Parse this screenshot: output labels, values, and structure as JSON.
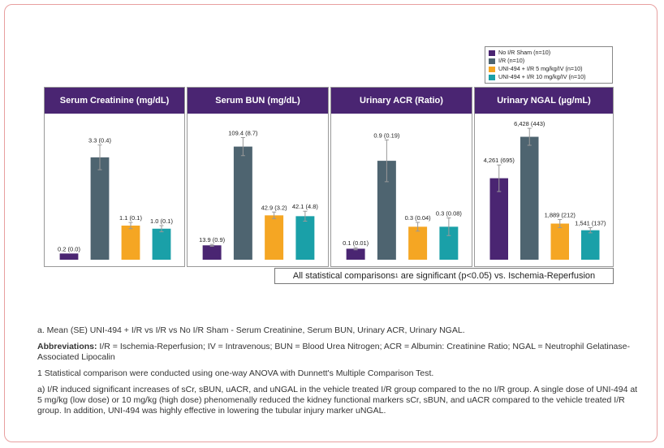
{
  "legend": [
    {
      "label": "No I/R Sham (n=10)",
      "color": "#4a2572"
    },
    {
      "label": "I/R (n=10)",
      "color": "#4e6470"
    },
    {
      "label": "UNI-494 + I/R 5 mg/kg/IV (n=10)",
      "color": "#f5a623"
    },
    {
      "label": "UNI-494 + I/R 10 mg/kg/IV (n=10)",
      "color": "#1aa0a8"
    }
  ],
  "chart_data": [
    {
      "type": "bar",
      "title": "Serum Creatinine (mg/dL)",
      "categories": [
        "No I/R Sham (n=10)",
        "I/R (n=10)",
        "UNI-494 + I/R 5 mg/kg/IV (n=10)",
        "UNI-494 + I/R 10 mg/kg/IV (n=10)"
      ],
      "values": [
        0.2,
        3.3,
        1.1,
        1.0
      ],
      "errors": [
        0.0,
        0.4,
        0.1,
        0.1
      ],
      "labels": [
        "0.2 (0.0)",
        "3.3 (0.4)",
        "1.1 (0.1)",
        "1.0 (0.1)"
      ],
      "ylim": [
        0,
        4.5
      ]
    },
    {
      "type": "bar",
      "title": "Serum BUN (mg/dL)",
      "categories": [
        "No I/R Sham (n=10)",
        "I/R (n=10)",
        "UNI-494 + I/R 5 mg/kg/IV (n=10)",
        "UNI-494 + I/R 10 mg/kg/IV (n=10)"
      ],
      "values": [
        13.9,
        109.4,
        42.9,
        42.1
      ],
      "errors": [
        0.9,
        8.7,
        3.2,
        4.8
      ],
      "labels": [
        "13.9 (0.9)",
        "109.4 (8.7)",
        "42.9 (3.2)",
        "42.1 (4.8)"
      ],
      "ylim": [
        0,
        135
      ]
    },
    {
      "type": "bar",
      "title": "Urinary ACR (Ratio)",
      "categories": [
        "No I/R Sham (n=10)",
        "I/R (n=10)",
        "UNI-494 + I/R 5 mg/kg/IV (n=10)",
        "UNI-494 + I/R 10 mg/kg/IV (n=10)"
      ],
      "values": [
        0.1,
        0.9,
        0.3,
        0.3
      ],
      "errors": [
        0.01,
        0.19,
        0.04,
        0.08
      ],
      "labels": [
        "0.1 (0.01)",
        "0.9 (0.19)",
        "0.3 (0.04)",
        "0.3 (0.08)"
      ],
      "ylim": [
        0,
        1.27
      ]
    },
    {
      "type": "bar",
      "title": "Urinary NGAL (µg/mL)",
      "categories": [
        "No I/R Sham (n=10)",
        "I/R (n=10)",
        "UNI-494 + I/R 5 mg/kg/IV (n=10)",
        "UNI-494 + I/R 10 mg/kg/IV (n=10)"
      ],
      "values": [
        4261,
        6428,
        1889,
        1541
      ],
      "errors": [
        695,
        443,
        212,
        137
      ],
      "labels": [
        "4,261 (695)",
        "6,428 (443)",
        "1,889 (212)",
        "1,541 (137)"
      ],
      "ylim": [
        0,
        7300
      ]
    }
  ],
  "stat_note": {
    "text": "All statistical comparisons",
    "sup": "1",
    "rest": " are significant (p<0.05) vs. Ischemia-Reperfusion"
  },
  "notes": {
    "a": "a. Mean (SE) UNI-494 + I/R vs I/R vs No I/R Sham - Serum Creatinine, Serum BUN, Urinary ACR, Urinary NGAL.",
    "abbrev_label": "Abbreviations:",
    "abbrev_text": " I/R = Ischemia-Reperfusion; IV = Intravenous; BUN = Blood Urea Nitrogen; ACR = Albumin: Creatinine Ratio; NGAL = Neutrophil Gelatinase-Associated Lipocalin",
    "stat": "1 Statistical comparison were conducted using one-way ANOVA with Dunnett's Multiple Comparison Test.",
    "summary": "a) I/R induced significant increases of sCr, sBUN, uACR, and uNGAL in the vehicle treated I/R group compared to the no I/R group. A single dose of UNI-494 at 5 mg/kg (low dose) or 10 mg/kg (high dose) phenomenally reduced the kidney functional markers sCr, sBUN, and uACR compared to the vehicle treated I/R group. In addition, UNI-494 was highly effective in lowering the tubular injury marker uNGAL."
  }
}
